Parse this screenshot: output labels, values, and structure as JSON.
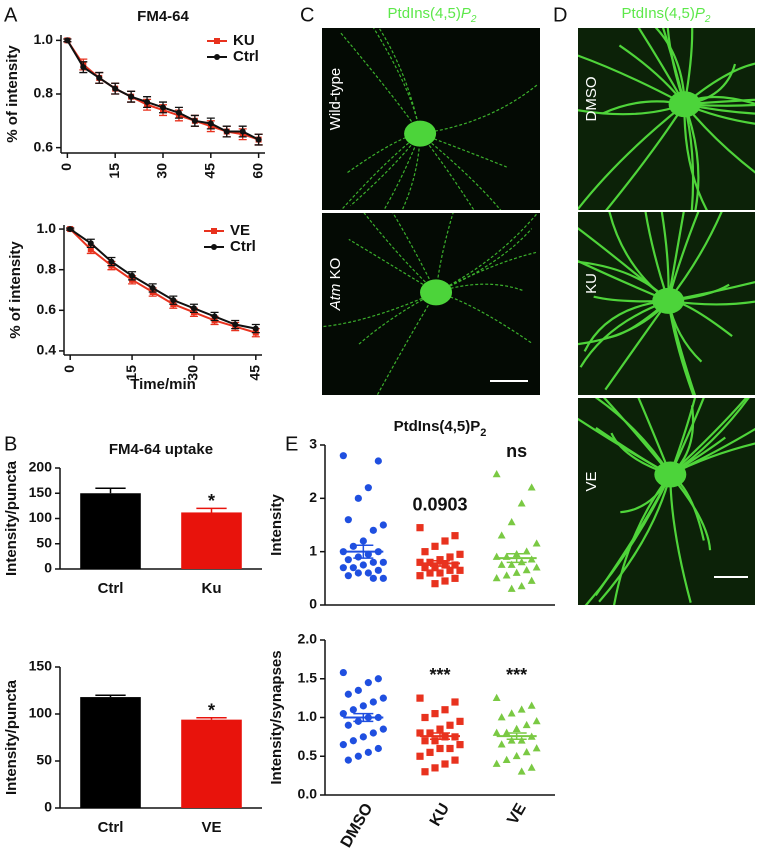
{
  "panel_letters": [
    "A",
    "B",
    "C",
    "D",
    "E"
  ],
  "image_panels": [
    {
      "title": "PtdIns(4,5)",
      "title_italic": "P",
      "title_sub": "2",
      "row_labels": [
        {
          "text": "Wild-type"
        },
        {
          "italic": "Atm",
          "text": "KO"
        }
      ]
    },
    {
      "title": "PtdIns(4,5)",
      "title_italic": "P",
      "title_sub": "2",
      "row_labels": [
        {
          "text": "DMSO"
        },
        {
          "text": "KU"
        },
        {
          "text": "VE"
        }
      ]
    }
  ],
  "chart_data": [
    {
      "type": "line",
      "title": "FM4-64",
      "ylabel": "% of intensity",
      "legend": "upper right",
      "x": [
        0,
        5,
        10,
        15,
        20,
        25,
        30,
        35,
        40,
        45,
        50,
        55,
        60
      ],
      "xlim": [
        -2,
        62
      ],
      "xticks": [
        0,
        15,
        30,
        45,
        60
      ],
      "ylim": [
        0.58,
        1.02
      ],
      "yticks": [
        0.6,
        0.8,
        {
          "value": 1,
          "label": "1.0"
        }
      ],
      "series": [
        {
          "name": "KU",
          "color": "#e8321e",
          "marker": "square",
          "values": [
            1.0,
            0.91,
            0.86,
            0.82,
            0.79,
            0.76,
            0.74,
            0.72,
            0.7,
            0.68,
            0.66,
            0.65,
            0.63
          ],
          "errors": [
            0.005,
            0.02,
            0.02,
            0.02,
            0.02,
            0.02,
            0.02,
            0.02,
            0.02,
            0.02,
            0.02,
            0.02,
            0.02
          ]
        },
        {
          "name": "Ctrl",
          "color": "#111111",
          "marker": "circle",
          "values": [
            1.0,
            0.9,
            0.86,
            0.82,
            0.79,
            0.77,
            0.75,
            0.73,
            0.7,
            0.69,
            0.66,
            0.66,
            0.63
          ],
          "errors": [
            0.005,
            0.02,
            0.02,
            0.02,
            0.02,
            0.02,
            0.02,
            0.02,
            0.02,
            0.02,
            0.02,
            0.02,
            0.02
          ]
        }
      ]
    },
    {
      "type": "line",
      "xlabel": "Time/min",
      "ylabel": "% of intensity",
      "legend": "upper right",
      "x": [
        0,
        5,
        10,
        15,
        20,
        25,
        30,
        35,
        40,
        45
      ],
      "xlim": [
        -1.5,
        46.5
      ],
      "xticks": [
        0,
        15,
        30,
        45
      ],
      "ylim": [
        0.38,
        1.02
      ],
      "yticks": [
        0.4,
        0.6,
        0.8,
        {
          "value": 1,
          "label": "1.0"
        }
      ],
      "series": [
        {
          "name": "VE",
          "color": "#e8321e",
          "marker": "square",
          "values": [
            1.0,
            0.9,
            0.82,
            0.75,
            0.69,
            0.63,
            0.59,
            0.55,
            0.52,
            0.49
          ],
          "errors": [
            0.005,
            0.02,
            0.02,
            0.02,
            0.02,
            0.02,
            0.02,
            0.02,
            0.02,
            0.02
          ]
        },
        {
          "name": "Ctrl",
          "color": "#111111",
          "marker": "circle",
          "values": [
            1.0,
            0.93,
            0.84,
            0.77,
            0.71,
            0.65,
            0.61,
            0.57,
            0.53,
            0.51
          ],
          "errors": [
            0.005,
            0.02,
            0.02,
            0.02,
            0.02,
            0.02,
            0.02,
            0.02,
            0.02,
            0.02
          ]
        }
      ]
    },
    {
      "type": "bar",
      "title": "FM4-64 uptake",
      "ylabel": "Intensity/puncta",
      "categories": [
        "Ctrl",
        "Ku"
      ],
      "values": [
        150,
        112
      ],
      "errors": [
        10,
        8
      ],
      "annotations": [
        null,
        "*"
      ],
      "colors": [
        "#000000",
        "#e8130c"
      ],
      "ylim": [
        0,
        200
      ],
      "yticks": [
        0,
        50,
        100,
        150,
        200
      ]
    },
    {
      "type": "bar",
      "ylabel": "Intensity/puncta",
      "categories": [
        "Ctrl",
        "VE"
      ],
      "values": [
        118,
        94
      ],
      "errors": [
        2,
        2
      ],
      "annotations": [
        null,
        "*"
      ],
      "colors": [
        "#000000",
        "#e8130c"
      ],
      "ylim": [
        0,
        150
      ],
      "yticks": [
        0,
        50,
        100,
        150
      ]
    },
    {
      "type": "dot",
      "title": "PtdIns(4,5)P",
      "title_sub": "2",
      "ylabel": "Intensity",
      "ylim": [
        0,
        3
      ],
      "yticks": [
        0,
        1,
        2,
        3
      ],
      "annotations": [
        null,
        "0.0903",
        "ns"
      ],
      "groups": [
        {
          "color": "#1f4fe0",
          "marker": "circle",
          "mean": 1.0,
          "sem": 0.12,
          "values": [
            2.8,
            2.7,
            2.2,
            2.0,
            1.6,
            1.5,
            1.4,
            1.2,
            1.1,
            1.0,
            1.0,
            0.95,
            0.9,
            0.85,
            0.8,
            0.8,
            0.75,
            0.7,
            0.7,
            0.65,
            0.6,
            0.6,
            0.55,
            0.5,
            0.5
          ]
        },
        {
          "color": "#e8321e",
          "marker": "square",
          "mean": 0.78,
          "sem": 0.05,
          "values": [
            1.45,
            1.3,
            1.2,
            1.1,
            1.0,
            0.95,
            0.9,
            0.85,
            0.8,
            0.8,
            0.75,
            0.75,
            0.7,
            0.7,
            0.65,
            0.65,
            0.6,
            0.6,
            0.55,
            0.5,
            0.45,
            0.4
          ]
        },
        {
          "color": "#7ac943",
          "marker": "triangle",
          "mean": 0.88,
          "sem": 0.08,
          "values": [
            2.45,
            2.2,
            1.9,
            1.55,
            1.3,
            1.15,
            1.0,
            0.95,
            0.9,
            0.9,
            0.85,
            0.8,
            0.75,
            0.75,
            0.7,
            0.65,
            0.6,
            0.55,
            0.5,
            0.45,
            0.35,
            0.3
          ]
        }
      ]
    },
    {
      "type": "dot",
      "ylabel": "Intensity/synapses",
      "categories": [
        "DMSO",
        "KU",
        "VE"
      ],
      "ylim": [
        0,
        2
      ],
      "yticks": [
        {
          "value": 0,
          "label": "0.0"
        },
        {
          "value": 0.5,
          "label": "0.5"
        },
        {
          "value": 1,
          "label": "1.0"
        },
        {
          "value": 1.5,
          "label": "1.5"
        },
        {
          "value": 2,
          "label": "2.0"
        }
      ],
      "annotations": [
        null,
        "***",
        "***"
      ],
      "groups": [
        {
          "color": "#1f4fe0",
          "marker": "circle",
          "mean": 1.0,
          "sem": 0.05,
          "values": [
            1.58,
            1.5,
            1.45,
            1.35,
            1.3,
            1.25,
            1.2,
            1.15,
            1.1,
            1.05,
            1.0,
            1.0,
            0.95,
            0.9,
            0.85,
            0.8,
            0.75,
            0.7,
            0.65,
            0.6,
            0.55,
            0.5,
            0.45
          ]
        },
        {
          "color": "#e8321e",
          "marker": "square",
          "mean": 0.76,
          "sem": 0.04,
          "values": [
            1.25,
            1.2,
            1.1,
            1.05,
            1.0,
            0.95,
            0.9,
            0.85,
            0.8,
            0.8,
            0.75,
            0.75,
            0.7,
            0.7,
            0.65,
            0.6,
            0.6,
            0.55,
            0.5,
            0.45,
            0.4,
            0.35,
            0.3
          ]
        },
        {
          "color": "#7ac943",
          "marker": "triangle",
          "mean": 0.76,
          "sem": 0.04,
          "values": [
            1.25,
            1.15,
            1.1,
            1.05,
            1.0,
            0.95,
            0.9,
            0.85,
            0.8,
            0.8,
            0.75,
            0.7,
            0.7,
            0.65,
            0.6,
            0.55,
            0.5,
            0.45,
            0.4,
            0.35,
            0.3
          ]
        }
      ]
    }
  ]
}
